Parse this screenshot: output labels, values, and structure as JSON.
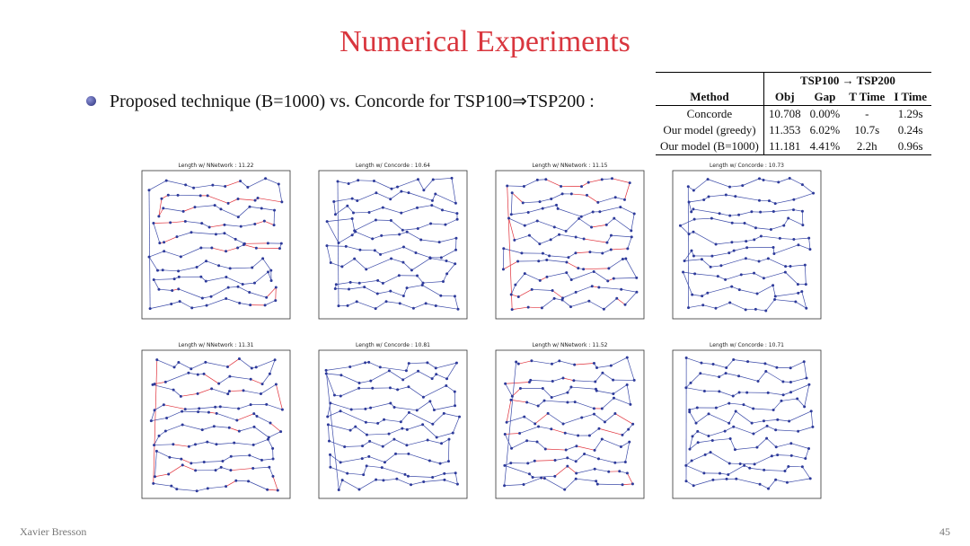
{
  "title": "Numerical Experiments",
  "bullet": "Proposed technique (B=1000) vs. Concorde for TSP100⇒TSP200 :",
  "table": {
    "group_header": "TSP100 → TSP200",
    "columns": [
      "Method",
      "Obj",
      "Gap",
      "T Time",
      "I Time"
    ],
    "rows": [
      [
        "Concorde",
        "10.708",
        "0.00%",
        "-",
        "1.29s"
      ],
      [
        "Our model (greedy)",
        "11.353",
        "6.02%",
        "10.7s",
        "0.24s"
      ],
      [
        "Our model (B=1000)",
        "11.181",
        "4.41%",
        "2.2h",
        "0.96s"
      ]
    ]
  },
  "panels": [
    {
      "title": "Length w/ NNetwork : 11.22"
    },
    {
      "title": "Length w/ Concorde : 10.64"
    },
    {
      "title": "Length w/ NNetwork : 11.15"
    },
    {
      "title": "Length w/ Concorde : 10.73"
    },
    {
      "title": "Length w/ NNetwork : 11.31"
    },
    {
      "title": "Length w/ Concorde : 10.81"
    },
    {
      "title": "Length w/ NNetwork : 11.52"
    },
    {
      "title": "Length w/ Concorde : 10.71"
    }
  ],
  "footer": {
    "author": "Xavier Bresson",
    "page": "45"
  }
}
